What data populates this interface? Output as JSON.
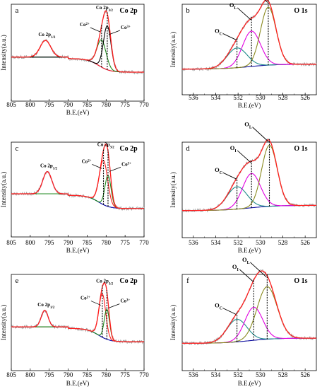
{
  "chart_data": [
    {
      "panel": "a",
      "title": "Co 2p",
      "type": "line",
      "xlabel": "B.E.(eV)",
      "ylabel": "Intensity(a.u.)",
      "xlim": [
        805,
        770
      ],
      "x_ticks": [
        "805",
        "800",
        "795",
        "790",
        "785",
        "780",
        "775",
        "770"
      ],
      "labels": [
        "Co 2p1/2",
        "Co 2p3/2",
        "Co2+",
        "Co3+"
      ],
      "peaks": [
        {
          "center": 796.0,
          "height": 0.22,
          "width": 1.4,
          "color": "#ff1f1f",
          "name": "Co 2p1/2"
        },
        {
          "center": 781.2,
          "height": 0.36,
          "width": 1.2,
          "color": "#1f8a1f",
          "name": "Co2+"
        },
        {
          "center": 779.7,
          "height": 0.58,
          "width": 1.0,
          "color": "#000000",
          "name": "Co3+"
        }
      ]
    },
    {
      "panel": "b",
      "title": "O 1s",
      "type": "line",
      "xlabel": "B.E.(eV)",
      "ylabel": "Intensity(a.u.)",
      "xlim": [
        537,
        525
      ],
      "x_ticks": [
        "536",
        "534",
        "532",
        "530",
        "528",
        "526"
      ],
      "labels": [
        "OI",
        "OL",
        "OC"
      ],
      "peaks": [
        {
          "center": 532.1,
          "height": 0.28,
          "width": 0.9,
          "color": "#1f8a8a",
          "name": "OC"
        },
        {
          "center": 530.8,
          "height": 0.5,
          "width": 0.8,
          "color": "#e000e0",
          "name": "OL"
        },
        {
          "center": 529.3,
          "height": 0.82,
          "width": 0.7,
          "color": "#8a8a1f",
          "name": "OI"
        }
      ]
    },
    {
      "panel": "c",
      "title": "Co 2p",
      "type": "line",
      "xlabel": "B.E.(eV)",
      "ylabel": "Intensity(a.u.)",
      "xlim": [
        805,
        770
      ],
      "x_ticks": [
        "805",
        "800",
        "795",
        "790",
        "785",
        "780",
        "775",
        "770"
      ],
      "labels": [
        "Co 2p1/2",
        "Co 2p3/2",
        "Co2+",
        "Co3+"
      ],
      "peaks": [
        {
          "center": 795.5,
          "height": 0.3,
          "width": 1.2,
          "color": "#1f1fb0",
          "name": "Co 2p1/2"
        },
        {
          "center": 780.7,
          "height": 0.6,
          "width": 1.1,
          "color": "#ff1f1f",
          "name": "Co2+"
        },
        {
          "center": 779.5,
          "height": 0.42,
          "width": 0.8,
          "color": "#1f8a1f",
          "name": "Co3+"
        }
      ]
    },
    {
      "panel": "d",
      "title": "O 1s",
      "type": "line",
      "xlabel": "B.E.(eV)",
      "ylabel": "Intensity(a.u.)",
      "xlim": [
        537,
        525
      ],
      "x_ticks": [
        "536",
        "534",
        "532",
        "530",
        "528",
        "526"
      ],
      "labels": [
        "OL",
        "OI",
        "OC"
      ],
      "peaks": [
        {
          "center": 532.1,
          "height": 0.3,
          "width": 0.9,
          "color": "#1f8a8a",
          "name": "OC"
        },
        {
          "center": 530.8,
          "height": 0.46,
          "width": 0.8,
          "color": "#e000e0",
          "name": "OI"
        },
        {
          "center": 529.2,
          "height": 0.82,
          "width": 0.7,
          "color": "#8a8a1f",
          "name": "OL"
        }
      ]
    },
    {
      "panel": "e",
      "title": "Co 2p",
      "type": "line",
      "xlabel": "B.E.(eV)",
      "ylabel": "Intensity(a.u.)",
      "xlim": [
        805,
        770
      ],
      "x_ticks": [
        "805",
        "800",
        "795",
        "790",
        "785",
        "780",
        "775",
        "770"
      ],
      "labels": [
        "Co 2p1/2",
        "Co 2p3/2",
        "Co2+",
        "Co3+"
      ],
      "peaks": [
        {
          "center": 796.2,
          "height": 0.22,
          "width": 0.9,
          "color": "#1f1fb0",
          "name": "Co 2p1/2"
        },
        {
          "center": 781.0,
          "height": 0.58,
          "width": 0.9,
          "color": "#ff1f1f",
          "name": "Co2+"
        },
        {
          "center": 779.8,
          "height": 0.4,
          "width": 0.7,
          "color": "#1f8a1f",
          "name": "Co3+"
        }
      ]
    },
    {
      "panel": "f",
      "title": "O 1s",
      "type": "line",
      "xlabel": "B.E.(eV)",
      "ylabel": "Intensity(a.u.)",
      "xlim": [
        537,
        525
      ],
      "x_ticks": [
        "536",
        "534",
        "532",
        "530",
        "528",
        "526"
      ],
      "labels": [
        "OL",
        "OI",
        "OC"
      ],
      "peaks": [
        {
          "center": 532.1,
          "height": 0.3,
          "width": 0.9,
          "color": "#1f8a8a",
          "name": "OC"
        },
        {
          "center": 530.6,
          "height": 0.44,
          "width": 0.8,
          "color": "#e000e0",
          "name": "OI"
        },
        {
          "center": 529.4,
          "height": 0.7,
          "width": 0.9,
          "color": "#8a8a1f",
          "name": "OL"
        }
      ]
    }
  ],
  "colors": {
    "envelope": "#ff1f1f",
    "raw": "#9a9a9a",
    "background": "#1010a0"
  }
}
